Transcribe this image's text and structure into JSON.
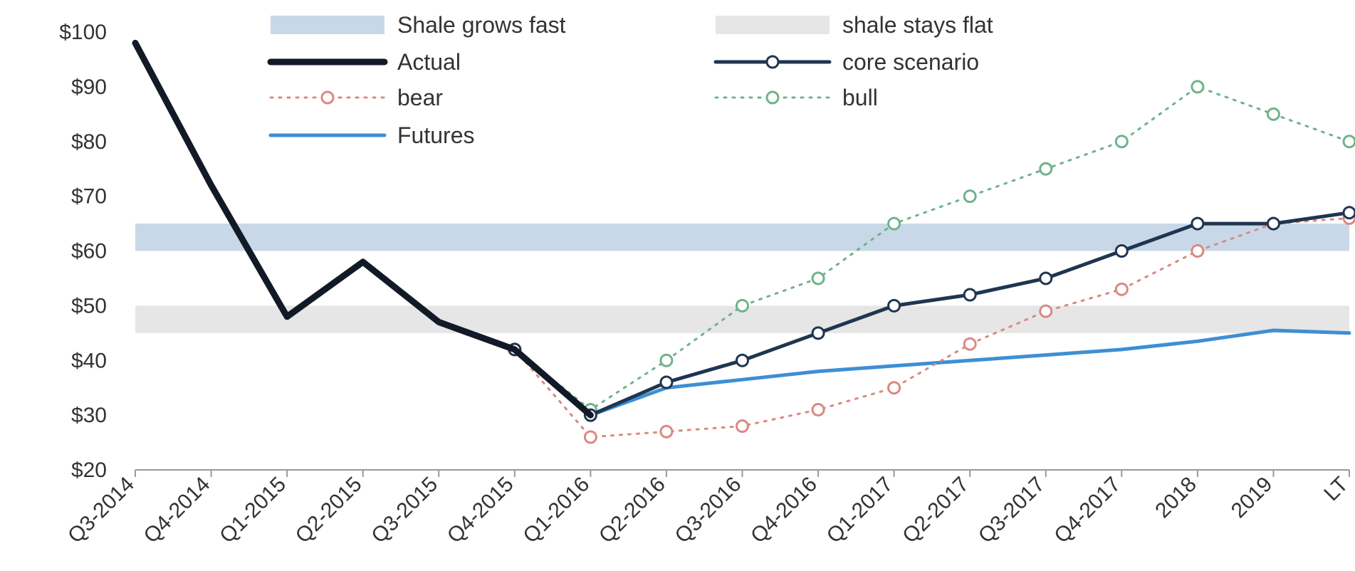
{
  "chart_data": {
    "type": "line",
    "title": "",
    "xlabel": "",
    "ylabel": "",
    "categories": [
      "Q3-2014",
      "Q4-2014",
      "Q1-2015",
      "Q2-2015",
      "Q3-2015",
      "Q4-2015",
      "Q1-2016",
      "Q2-2016",
      "Q3-2016",
      "Q4-2016",
      "Q1-2017",
      "Q2-2017",
      "Q3-2017",
      "Q4-2017",
      "2018",
      "2019",
      "LT"
    ],
    "ylim": [
      20,
      100
    ],
    "yticks": [
      20,
      30,
      40,
      50,
      60,
      70,
      80,
      90,
      100
    ],
    "ytick_labels": [
      "$20",
      "$30",
      "$40",
      "$50",
      "$60",
      "$70",
      "$80",
      "$90",
      "$100"
    ],
    "grid": false,
    "legend_position": "top",
    "bands": [
      {
        "name": "Shale grows fast",
        "from": 60,
        "to": 65,
        "color": "#c9d8e8"
      },
      {
        "name": "shale stays flat",
        "from": 45,
        "to": 50,
        "color": "#e6e6e6"
      }
    ],
    "series": [
      {
        "name": "Actual",
        "color": "#111a26",
        "style": "solid-thick",
        "markers": false,
        "values": [
          98,
          72,
          48,
          58,
          47,
          42,
          30,
          null,
          null,
          null,
          null,
          null,
          null,
          null,
          null,
          null,
          null
        ]
      },
      {
        "name": "core scenario",
        "color": "#1f3550",
        "style": "solid",
        "markers": true,
        "values": [
          null,
          null,
          null,
          null,
          null,
          42,
          30,
          36,
          40,
          45,
          50,
          52,
          55,
          60,
          65,
          65,
          67
        ]
      },
      {
        "name": "bear",
        "color": "#d98a80",
        "style": "dotted",
        "markers": true,
        "values": [
          null,
          null,
          null,
          null,
          null,
          42,
          26,
          27,
          28,
          31,
          35,
          43,
          49,
          53,
          60,
          65,
          66
        ]
      },
      {
        "name": "bull",
        "color": "#6fb38a",
        "style": "dotted",
        "markers": true,
        "values": [
          null,
          null,
          null,
          null,
          null,
          42,
          31,
          40,
          50,
          55,
          65,
          70,
          75,
          80,
          90,
          85,
          80
        ]
      },
      {
        "name": "Futures",
        "color": "#3d8fd4",
        "style": "solid",
        "markers": false,
        "values": [
          null,
          null,
          null,
          null,
          null,
          42,
          30,
          35,
          36.5,
          38,
          39,
          40,
          41,
          42,
          43.5,
          45.5,
          45
        ]
      }
    ]
  }
}
